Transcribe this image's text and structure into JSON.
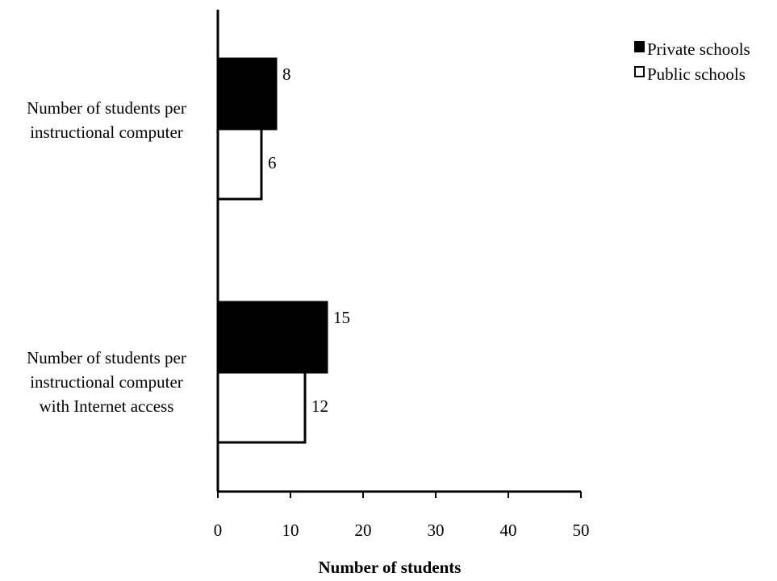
{
  "chart_data": {
    "type": "bar",
    "orientation": "horizontal",
    "title": "",
    "xlabel": "Number of students",
    "ylabel": "",
    "xlim": [
      0,
      50
    ],
    "xticks": [
      0,
      10,
      20,
      30,
      40,
      50
    ],
    "grid": false,
    "legend_position": "top-right",
    "categories": [
      [
        "Number of students per",
        "instructional computer"
      ],
      [
        "Number of students per",
        "instructional computer",
        "with Internet access"
      ]
    ],
    "series": [
      {
        "name": "Private schools",
        "values": [
          8,
          15
        ],
        "color": "#000000"
      },
      {
        "name": "Public schools",
        "values": [
          6,
          12
        ],
        "color": "#ffffff"
      }
    ]
  }
}
